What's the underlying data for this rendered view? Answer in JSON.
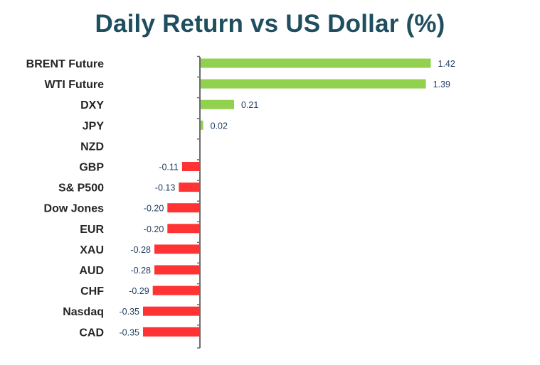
{
  "chart_data": {
    "type": "bar",
    "orientation": "horizontal",
    "title": "Daily Return vs US Dollar (%)",
    "xlabel": "",
    "ylabel": "",
    "grid": false,
    "legend": "none",
    "xlim": [
      -0.36,
      1.45
    ],
    "categories": [
      "BRENT Future",
      "WTI Future",
      "DXY",
      "JPY",
      "NZD",
      "GBP",
      "S& P500",
      "Dow Jones",
      "EUR",
      "XAU",
      "AUD",
      "CHF",
      "Nasdaq",
      "CAD"
    ],
    "values": [
      1.42,
      1.39,
      0.21,
      0.02,
      0.0,
      -0.11,
      -0.13,
      -0.2,
      -0.2,
      -0.28,
      -0.28,
      -0.29,
      -0.35,
      -0.35
    ],
    "data_labels": [
      "1.42",
      "1.39",
      "0.21",
      "0.02",
      "",
      "-0.11",
      "-0.13",
      "-0.20",
      "-0.20",
      "-0.28",
      "-0.28",
      "-0.29",
      "-0.35",
      "-0.35"
    ],
    "colors": {
      "positive": "#92d050",
      "negative": "#ff3333",
      "axis": "#6b6b6b",
      "title": "#1f4e5f",
      "category_text": "#262626",
      "value_text": "#1f3a5f"
    }
  }
}
